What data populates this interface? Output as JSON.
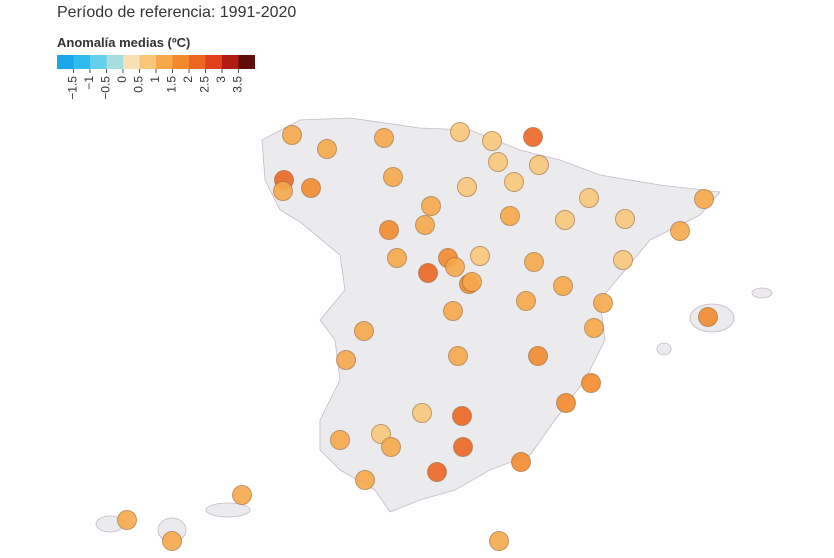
{
  "subtitle": "Período de referencia: 1991-2020",
  "legend": {
    "title": "Anomalía medias (ºC)",
    "colors": [
      "#1aa6e8",
      "#2ebcf0",
      "#62d0ee",
      "#a6dde0",
      "#f9dfb4",
      "#f8c77a",
      "#f6a84a",
      "#f28a2c",
      "#ec6624",
      "#e0401c",
      "#b01c12",
      "#5e0d08"
    ],
    "ticks": [
      {
        "value": -1.5,
        "label": "−1.5"
      },
      {
        "value": -1,
        "label": "−1"
      },
      {
        "value": -0.5,
        "label": "−0.5"
      },
      0,
      0.5,
      1,
      1.5,
      2,
      2.5,
      3,
      3.5
    ]
  },
  "stations": {
    "values": [
      1.3,
      1.3,
      0.8,
      2.1,
      1.3,
      0.8,
      0.8,
      0.6,
      2.1,
      1.0,
      1.8,
      1.3,
      0.9,
      0.6,
      0.6,
      1.3,
      1.4,
      1.4,
      0.6,
      0.9,
      1.4,
      1.8,
      1.3,
      1.4,
      1.5,
      0.9,
      1.4,
      2.1,
      1.5,
      1.4,
      1.4,
      0.9,
      1.4,
      1.4,
      1.3,
      1.4,
      1.0,
      1.3,
      1.8,
      1.0,
      1.4,
      1.8,
      1.8,
      0.6,
      2.1,
      1.8,
      1.0,
      0.7,
      1.3,
      2.3,
      2.3,
      1.8,
      1.0,
      1.0,
      1.0,
      1.3,
      1.3
    ]
  }
}
